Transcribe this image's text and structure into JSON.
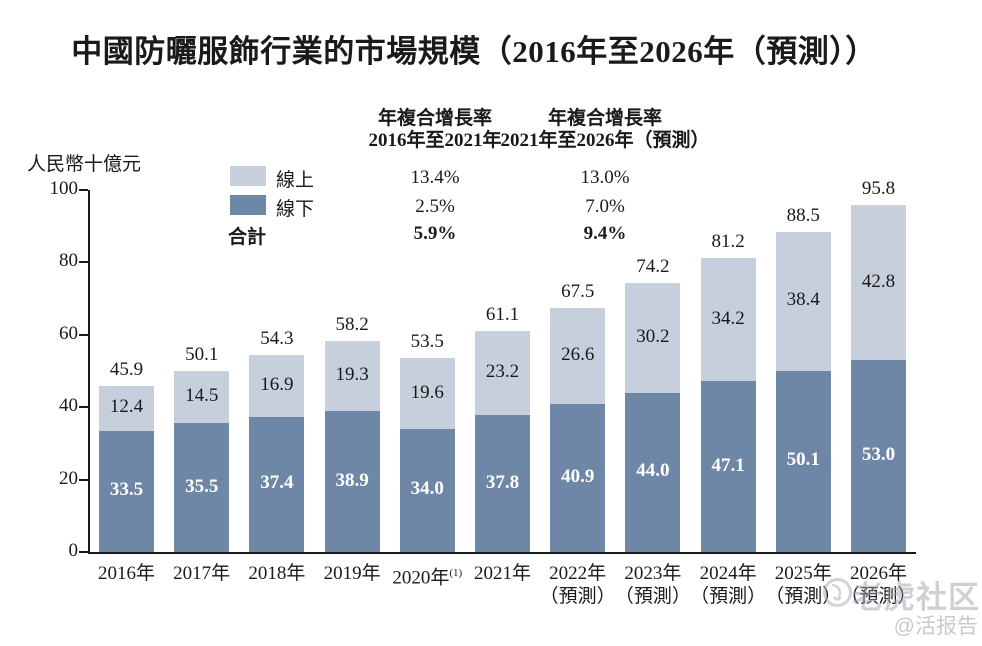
{
  "title": "中國防曬服飾行業的市場規模（2016年至2026年（預測））",
  "unit_label": "人民幣十億元",
  "legend": {
    "online_label": "線上",
    "offline_label": "線下",
    "total_label": "合計"
  },
  "cagr_table": {
    "col1": {
      "header_line1": "年複合增長率",
      "header_line2": "2016年至2021年",
      "online": "13.4%",
      "offline": "2.5%",
      "total": "5.9%"
    },
    "col2": {
      "header_line1": "年複合增長率",
      "header_line2": "2021年至2026年（預測）",
      "online": "13.0%",
      "offline": "7.0%",
      "total": "9.4%"
    }
  },
  "colors": {
    "online": "#c6cfdb",
    "offline": "#6e87a7",
    "axis": "#1a1a1a",
    "text": "#1a1a1a",
    "bar_label_light": "#1a1a1a",
    "bar_label_dark": "#ffffff"
  },
  "watermark": {
    "brand": "老虎社区",
    "handle": "@活报告"
  },
  "chart_data": {
    "type": "bar",
    "stacked": true,
    "title": "中國防曬服飾行業的市場規模（2016年至2026年（預測））",
    "xlabel": "",
    "ylabel": "人民幣十億元",
    "ylim": [
      0,
      100
    ],
    "yticks": [
      0,
      20,
      40,
      60,
      80,
      100
    ],
    "grid": false,
    "legend_position": "top-left",
    "categories": [
      "2016年",
      "2017年",
      "2018年",
      "2019年",
      "2020年",
      "2021年",
      "2022年",
      "2023年",
      "2024年",
      "2025年",
      "2026年"
    ],
    "category_superscripts": [
      "",
      "",
      "",
      "",
      "(1)",
      "",
      "",
      "",
      "",
      "",
      ""
    ],
    "category_sublabels": [
      "",
      "",
      "",
      "",
      "",
      "",
      "（預測）",
      "（預測）",
      "（預測）",
      "（預測）",
      "（預測）"
    ],
    "series": [
      {
        "name": "線上",
        "color": "#c6cfdb",
        "values": [
          12.4,
          14.5,
          16.9,
          19.3,
          19.6,
          23.2,
          26.6,
          30.2,
          34.2,
          38.4,
          42.8
        ]
      },
      {
        "name": "線下",
        "color": "#6e87a7",
        "values": [
          33.5,
          35.5,
          37.4,
          38.9,
          34.0,
          37.8,
          40.9,
          44.0,
          47.1,
          50.1,
          53.0
        ]
      }
    ],
    "totals": [
      45.9,
      50.1,
      54.3,
      58.2,
      53.5,
      61.1,
      67.5,
      74.2,
      81.2,
      88.5,
      95.8
    ],
    "cagr": {
      "period_2016_2021": {
        "online": "13.4%",
        "offline": "2.5%",
        "total": "5.9%"
      },
      "period_2021_2026_forecast": {
        "online": "13.0%",
        "offline": "7.0%",
        "total": "9.4%"
      }
    }
  }
}
